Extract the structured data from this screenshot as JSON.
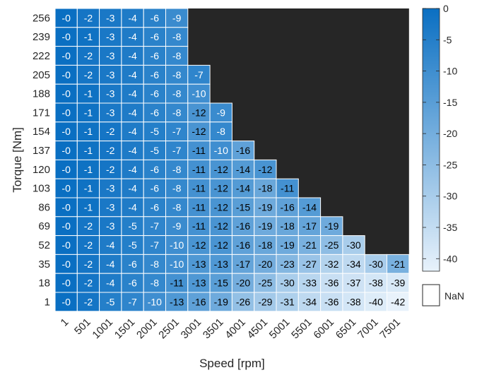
{
  "chart_data": {
    "type": "heatmap",
    "xlabel": "Speed [rpm]",
    "ylabel": "Torque [Nm]",
    "x": [
      "1",
      "501",
      "1001",
      "1501",
      "2001",
      "2501",
      "3001",
      "3501",
      "4001",
      "4501",
      "5001",
      "5501",
      "6001",
      "6501",
      "7001",
      "7501"
    ],
    "y": [
      "256",
      "239",
      "222",
      "205",
      "188",
      "171",
      "154",
      "137",
      "120",
      "103",
      "86",
      "69",
      "52",
      "35",
      "18",
      "1"
    ],
    "values": [
      [
        "-0",
        "-2",
        "-3",
        "-4",
        "-6",
        "-9",
        null,
        null,
        null,
        null,
        null,
        null,
        null,
        null,
        null,
        null
      ],
      [
        "-0",
        "-1",
        "-3",
        "-4",
        "-6",
        "-8",
        null,
        null,
        null,
        null,
        null,
        null,
        null,
        null,
        null,
        null
      ],
      [
        "-0",
        "-2",
        "-3",
        "-4",
        "-6",
        "-8",
        null,
        null,
        null,
        null,
        null,
        null,
        null,
        null,
        null,
        null
      ],
      [
        "-0",
        "-2",
        "-3",
        "-4",
        "-6",
        "-8",
        "-7",
        null,
        null,
        null,
        null,
        null,
        null,
        null,
        null,
        null
      ],
      [
        "-0",
        "-1",
        "-3",
        "-4",
        "-6",
        "-8",
        "-10",
        null,
        null,
        null,
        null,
        null,
        null,
        null,
        null,
        null
      ],
      [
        "-0",
        "-1",
        "-3",
        "-4",
        "-6",
        "-8",
        "-12",
        "-9",
        null,
        null,
        null,
        null,
        null,
        null,
        null,
        null
      ],
      [
        "-0",
        "-1",
        "-2",
        "-4",
        "-5",
        "-7",
        "-12",
        "-8",
        null,
        null,
        null,
        null,
        null,
        null,
        null,
        null
      ],
      [
        "-0",
        "-1",
        "-2",
        "-4",
        "-5",
        "-7",
        "-11",
        "-10",
        "-16",
        null,
        null,
        null,
        null,
        null,
        null,
        null
      ],
      [
        "-0",
        "-1",
        "-2",
        "-4",
        "-6",
        "-8",
        "-11",
        "-12",
        "-14",
        "-12",
        null,
        null,
        null,
        null,
        null,
        null
      ],
      [
        "-0",
        "-1",
        "-3",
        "-4",
        "-6",
        "-8",
        "-11",
        "-12",
        "-14",
        "-18",
        "-11",
        null,
        null,
        null,
        null,
        null
      ],
      [
        "-0",
        "-1",
        "-3",
        "-4",
        "-6",
        "-8",
        "-11",
        "-12",
        "-15",
        "-19",
        "-16",
        "-14",
        null,
        null,
        null,
        null
      ],
      [
        "-0",
        "-2",
        "-3",
        "-5",
        "-7",
        "-9",
        "-11",
        "-12",
        "-16",
        "-19",
        "-18",
        "-17",
        "-19",
        null,
        null,
        null
      ],
      [
        "-0",
        "-2",
        "-4",
        "-5",
        "-7",
        "-10",
        "-12",
        "-12",
        "-16",
        "-18",
        "-19",
        "-21",
        "-25",
        "-30",
        null,
        null
      ],
      [
        "-0",
        "-2",
        "-4",
        "-6",
        "-8",
        "-10",
        "-13",
        "-13",
        "-17",
        "-20",
        "-23",
        "-27",
        "-32",
        "-34",
        "-30",
        "-21"
      ],
      [
        "-0",
        "-2",
        "-4",
        "-6",
        "-8",
        "-11",
        "-13",
        "-15",
        "-20",
        "-25",
        "-30",
        "-33",
        "-36",
        "-37",
        "-38",
        "-39"
      ],
      [
        "-0",
        "-2",
        "-5",
        "-7",
        "-10",
        "-13",
        "-16",
        "-19",
        "-26",
        "-29",
        "-31",
        "-34",
        "-36",
        "-38",
        "-40",
        "-42"
      ]
    ],
    "colorbar": {
      "min": -42,
      "max": 0,
      "ticks": [
        "0",
        "-5",
        "-10",
        "-15",
        "-20",
        "-25",
        "-30",
        "-35",
        "-40"
      ],
      "nan_label": "NaN"
    },
    "colors": {
      "high": "#0a6fc2",
      "low": "#e8f2fb",
      "nan": "#262626",
      "grid": "#ffffff"
    }
  }
}
